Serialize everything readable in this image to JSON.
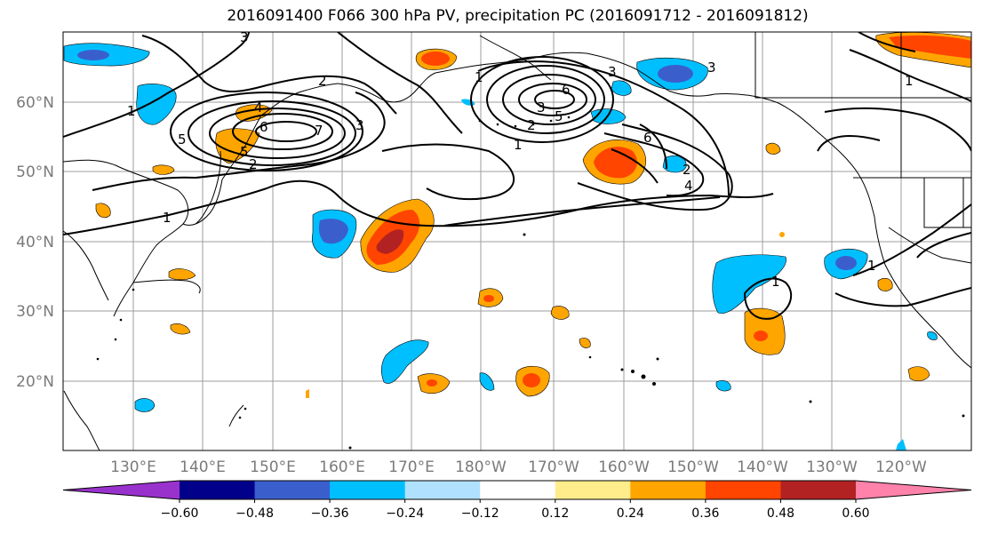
{
  "title": "2016091400 F066 300 hPa PV, precipitation PC (2016091712 - 2016091812)",
  "lat_labels": [
    "60°N",
    "50°N",
    "40°N",
    "30°N",
    "20°N"
  ],
  "lon_labels": [
    "130°E",
    "140°E",
    "150°E",
    "160°E",
    "170°E",
    "180°W",
    "170°W",
    "160°W",
    "150°W",
    "140°W",
    "130°W",
    "120°W"
  ],
  "contour_labels": [
    "3",
    "2",
    "1",
    "1",
    "4",
    "6",
    "5",
    "3",
    "7",
    "5",
    "2",
    "1",
    "3",
    "6",
    "5",
    "3",
    "3",
    "2",
    "1",
    "6",
    "2",
    "4",
    "1",
    "1",
    "1"
  ],
  "colorbar": {
    "colors": [
      "#9932cc",
      "#00008b",
      "#3a5fcd",
      "#00bfff",
      "#b0e2ff",
      "#ffffff",
      "#ffec8b",
      "#ffa500",
      "#ff4500",
      "#b22222",
      "#ff82ab"
    ],
    "labels": [
      "−0.60",
      "−0.48",
      "−0.36",
      "−0.24",
      "−0.12",
      "0.12",
      "0.24",
      "0.36",
      "0.48",
      "0.60"
    ]
  },
  "colors": {
    "grid": "#9e9e9e",
    "coast": "#000000",
    "contour": "#000000"
  }
}
